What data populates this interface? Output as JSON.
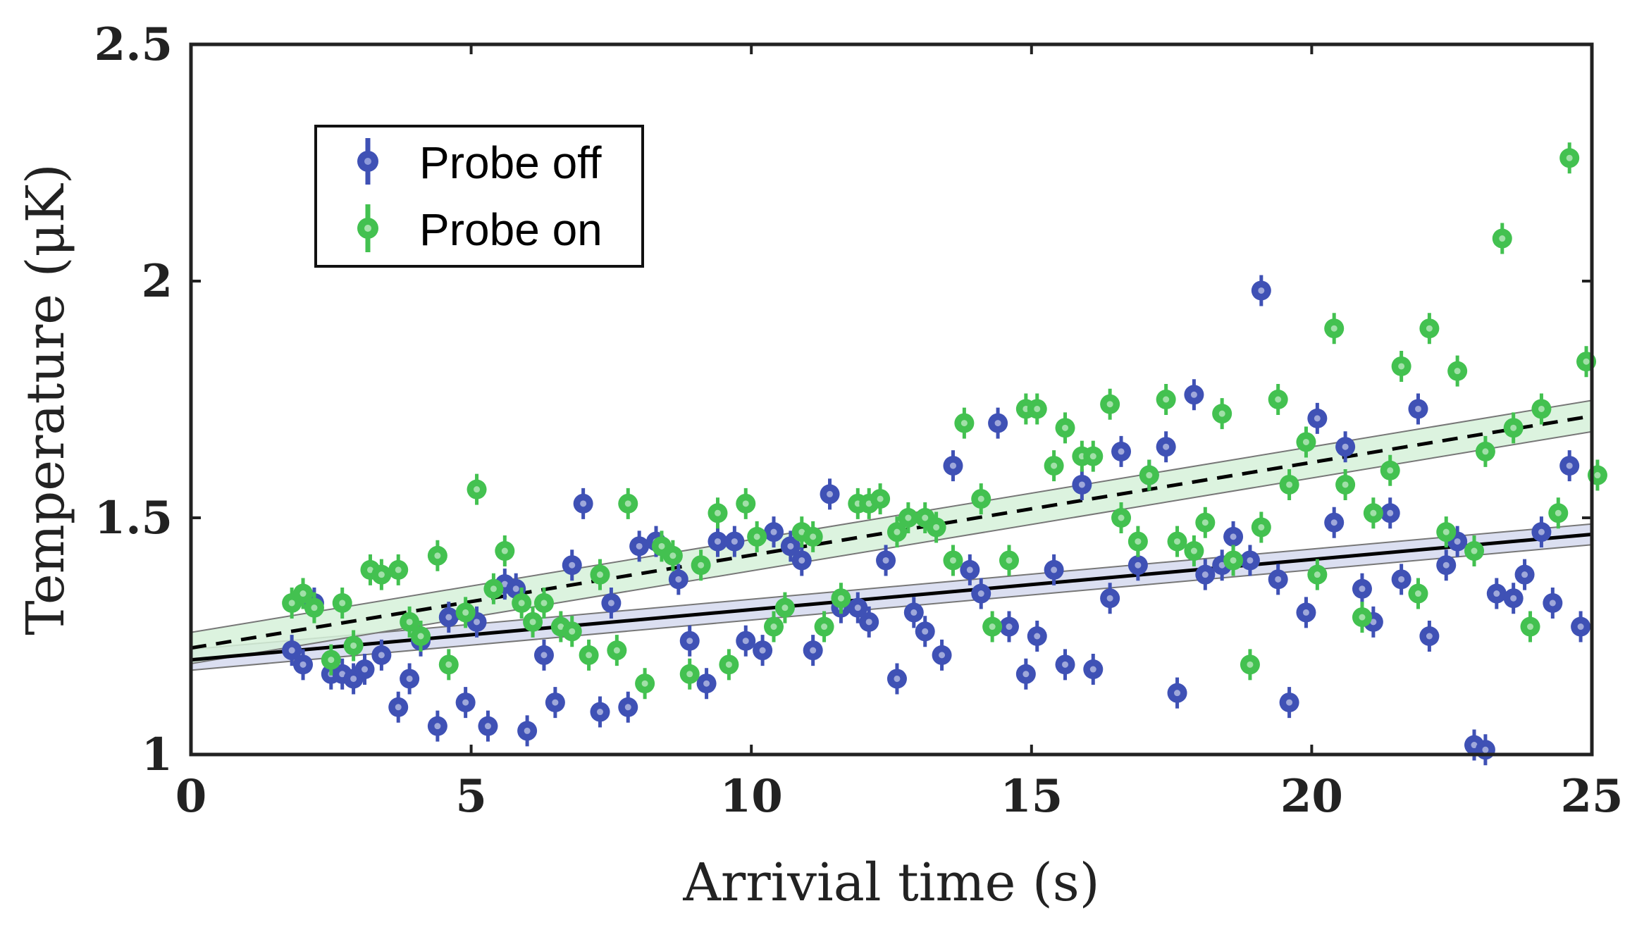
{
  "chart_data": {
    "type": "scatter",
    "xlabel": "Arrivial time (s)",
    "ylabel": "Temperature (μK)",
    "xlim": [
      0,
      25
    ],
    "ylim": [
      1,
      2.5
    ],
    "xticks": [
      0,
      5,
      10,
      15,
      20,
      25
    ],
    "yticks": [
      1,
      1.5,
      2,
      2.5
    ],
    "xtick_labels": [
      "0",
      "5",
      "10",
      "15",
      "20",
      "25"
    ],
    "ytick_labels": [
      "1",
      "1.5",
      "2",
      "2.5"
    ],
    "grid": false,
    "legend_position": "top-left",
    "series": [
      {
        "name": "Probe off",
        "color": "#3F51B5",
        "marker": "circle",
        "points": [
          [
            1.8,
            1.22
          ],
          [
            2.0,
            1.19
          ],
          [
            2.2,
            1.32
          ],
          [
            2.5,
            1.17
          ],
          [
            2.7,
            1.17
          ],
          [
            2.9,
            1.16
          ],
          [
            3.1,
            1.18
          ],
          [
            3.4,
            1.21
          ],
          [
            3.7,
            1.1
          ],
          [
            3.9,
            1.16
          ],
          [
            4.1,
            1.24
          ],
          [
            4.4,
            1.06
          ],
          [
            4.6,
            1.29
          ],
          [
            4.9,
            1.11
          ],
          [
            5.1,
            1.28
          ],
          [
            5.3,
            1.06
          ],
          [
            5.6,
            1.36
          ],
          [
            5.8,
            1.35
          ],
          [
            6.0,
            1.05
          ],
          [
            6.3,
            1.21
          ],
          [
            6.5,
            1.11
          ],
          [
            6.8,
            1.4
          ],
          [
            7.0,
            1.53
          ],
          [
            7.3,
            1.09
          ],
          [
            7.5,
            1.32
          ],
          [
            7.8,
            1.1
          ],
          [
            8.0,
            1.44
          ],
          [
            8.3,
            1.45
          ],
          [
            8.7,
            1.37
          ],
          [
            8.9,
            1.24
          ],
          [
            9.2,
            1.15
          ],
          [
            9.4,
            1.45
          ],
          [
            9.7,
            1.45
          ],
          [
            9.9,
            1.24
          ],
          [
            10.2,
            1.22
          ],
          [
            10.4,
            1.47
          ],
          [
            10.7,
            1.44
          ],
          [
            10.9,
            1.41
          ],
          [
            11.1,
            1.22
          ],
          [
            11.4,
            1.55
          ],
          [
            11.6,
            1.31
          ],
          [
            11.9,
            1.31
          ],
          [
            12.1,
            1.28
          ],
          [
            12.4,
            1.41
          ],
          [
            12.6,
            1.16
          ],
          [
            12.9,
            1.3
          ],
          [
            13.1,
            1.26
          ],
          [
            13.4,
            1.21
          ],
          [
            13.6,
            1.61
          ],
          [
            13.9,
            1.39
          ],
          [
            14.1,
            1.34
          ],
          [
            14.4,
            1.7
          ],
          [
            14.6,
            1.27
          ],
          [
            14.9,
            1.17
          ],
          [
            15.1,
            1.25
          ],
          [
            15.4,
            1.39
          ],
          [
            15.6,
            1.19
          ],
          [
            15.9,
            1.57
          ],
          [
            16.1,
            1.18
          ],
          [
            16.4,
            1.33
          ],
          [
            16.6,
            1.64
          ],
          [
            16.9,
            1.4
          ],
          [
            17.1,
            1.59
          ],
          [
            17.4,
            1.65
          ],
          [
            17.6,
            1.13
          ],
          [
            17.9,
            1.76
          ],
          [
            18.1,
            1.38
          ],
          [
            18.4,
            1.4
          ],
          [
            18.6,
            1.46
          ],
          [
            18.9,
            1.41
          ],
          [
            19.1,
            1.98
          ],
          [
            19.4,
            1.37
          ],
          [
            19.6,
            1.11
          ],
          [
            19.9,
            1.3
          ],
          [
            20.1,
            1.71
          ],
          [
            20.4,
            1.49
          ],
          [
            20.6,
            1.65
          ],
          [
            20.9,
            1.35
          ],
          [
            21.1,
            1.28
          ],
          [
            21.4,
            1.51
          ],
          [
            21.6,
            1.37
          ],
          [
            21.9,
            1.73
          ],
          [
            22.1,
            1.25
          ],
          [
            22.4,
            1.4
          ],
          [
            22.6,
            1.45
          ],
          [
            22.9,
            1.02
          ],
          [
            23.1,
            1.01
          ],
          [
            23.3,
            1.34
          ],
          [
            23.6,
            1.33
          ],
          [
            23.8,
            1.38
          ],
          [
            24.1,
            1.47
          ],
          [
            24.3,
            1.32
          ],
          [
            24.6,
            1.61
          ],
          [
            24.8,
            1.27
          ]
        ],
        "fit": {
          "start": [
            0,
            1.2
          ],
          "end": [
            25,
            1.465
          ],
          "band_halfwidth": 0.022,
          "line_style": "solid"
        }
      },
      {
        "name": "Probe on",
        "color": "#43C150",
        "marker": "circle",
        "points": [
          [
            1.8,
            1.32
          ],
          [
            2.0,
            1.34
          ],
          [
            2.2,
            1.31
          ],
          [
            2.5,
            1.2
          ],
          [
            2.7,
            1.32
          ],
          [
            2.9,
            1.23
          ],
          [
            3.2,
            1.39
          ],
          [
            3.4,
            1.38
          ],
          [
            3.7,
            1.39
          ],
          [
            3.9,
            1.28
          ],
          [
            4.1,
            1.25
          ],
          [
            4.4,
            1.42
          ],
          [
            4.6,
            1.19
          ],
          [
            4.9,
            1.3
          ],
          [
            5.1,
            1.56
          ],
          [
            5.4,
            1.35
          ],
          [
            5.6,
            1.43
          ],
          [
            5.9,
            1.32
          ],
          [
            6.1,
            1.28
          ],
          [
            6.3,
            1.32
          ],
          [
            6.6,
            1.27
          ],
          [
            6.8,
            1.26
          ],
          [
            7.1,
            1.21
          ],
          [
            7.3,
            1.38
          ],
          [
            7.6,
            1.22
          ],
          [
            7.8,
            1.53
          ],
          [
            8.1,
            1.15
          ],
          [
            8.4,
            1.44
          ],
          [
            8.6,
            1.42
          ],
          [
            8.9,
            1.17
          ],
          [
            9.1,
            1.4
          ],
          [
            9.4,
            1.51
          ],
          [
            9.6,
            1.19
          ],
          [
            9.9,
            1.53
          ],
          [
            10.1,
            1.46
          ],
          [
            10.4,
            1.27
          ],
          [
            10.6,
            1.31
          ],
          [
            10.9,
            1.47
          ],
          [
            11.1,
            1.46
          ],
          [
            11.3,
            1.27
          ],
          [
            11.6,
            1.33
          ],
          [
            11.9,
            1.53
          ],
          [
            12.1,
            1.53
          ],
          [
            12.3,
            1.54
          ],
          [
            12.6,
            1.47
          ],
          [
            12.8,
            1.5
          ],
          [
            13.1,
            1.5
          ],
          [
            13.3,
            1.48
          ],
          [
            13.6,
            1.41
          ],
          [
            13.8,
            1.7
          ],
          [
            14.1,
            1.54
          ],
          [
            14.3,
            1.27
          ],
          [
            14.6,
            1.41
          ],
          [
            14.9,
            1.73
          ],
          [
            15.1,
            1.73
          ],
          [
            15.4,
            1.61
          ],
          [
            15.6,
            1.69
          ],
          [
            15.9,
            1.63
          ],
          [
            16.1,
            1.63
          ],
          [
            16.4,
            1.74
          ],
          [
            16.6,
            1.5
          ],
          [
            16.9,
            1.45
          ],
          [
            17.1,
            1.59
          ],
          [
            17.4,
            1.75
          ],
          [
            17.6,
            1.45
          ],
          [
            17.9,
            1.43
          ],
          [
            18.1,
            1.49
          ],
          [
            18.4,
            1.72
          ],
          [
            18.6,
            1.41
          ],
          [
            18.9,
            1.19
          ],
          [
            19.1,
            1.48
          ],
          [
            19.4,
            1.75
          ],
          [
            19.6,
            1.57
          ],
          [
            19.9,
            1.66
          ],
          [
            20.1,
            1.38
          ],
          [
            20.4,
            1.9
          ],
          [
            20.6,
            1.57
          ],
          [
            20.9,
            1.29
          ],
          [
            21.1,
            1.51
          ],
          [
            21.4,
            1.6
          ],
          [
            21.6,
            1.82
          ],
          [
            21.9,
            1.34
          ],
          [
            22.1,
            1.9
          ],
          [
            22.4,
            1.47
          ],
          [
            22.6,
            1.81
          ],
          [
            22.9,
            1.43
          ],
          [
            23.1,
            1.64
          ],
          [
            23.4,
            2.09
          ],
          [
            23.6,
            1.69
          ],
          [
            23.9,
            1.27
          ],
          [
            24.1,
            1.73
          ],
          [
            24.4,
            1.51
          ],
          [
            24.6,
            2.26
          ],
          [
            24.9,
            1.83
          ],
          [
            25.1,
            1.59
          ]
        ],
        "fit": {
          "start": [
            0,
            1.225
          ],
          "end": [
            25,
            1.715
          ],
          "band_halfwidth": 0.033,
          "line_style": "dashed"
        }
      }
    ]
  }
}
